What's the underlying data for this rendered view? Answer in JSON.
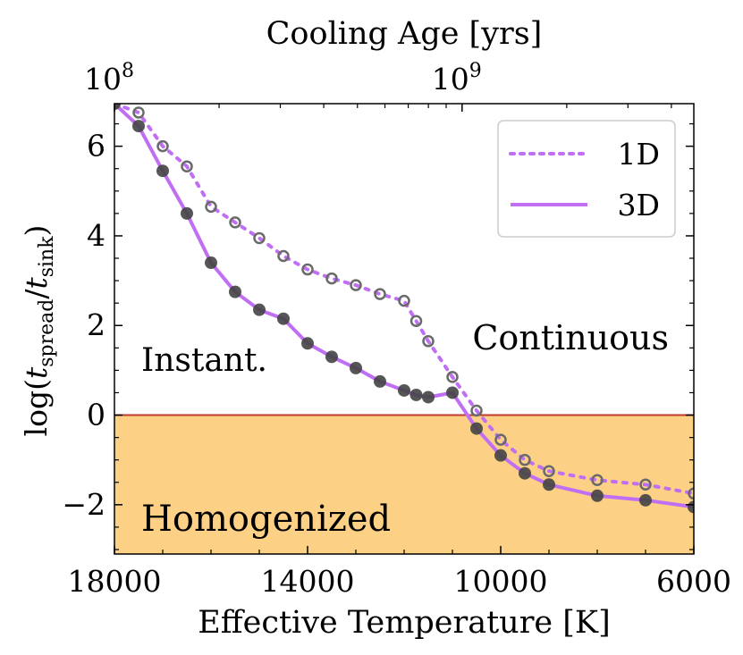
{
  "chart_data": {
    "type": "line",
    "title": "",
    "xlabel": "Effective Temperature [K]",
    "ylabel": "log(t_spread/t_sink)",
    "ylabel_parts": {
      "prefix": "log(",
      "t": "t",
      "sub1": "spread",
      "slash": "/",
      "sub2": "sink",
      "suffix": ")"
    },
    "top_axis_label": "Cooling Age [yrs]",
    "top_axis_ticks": [
      {
        "base": "10",
        "exp": "8",
        "teff": 18000
      },
      {
        "base": "10",
        "exp": "9",
        "teff": 10800
      }
    ],
    "xlim": [
      18000,
      6000
    ],
    "ylim": [
      -3.1,
      6.95
    ],
    "x_ticks": [
      18000,
      14000,
      10000,
      6000
    ],
    "x_tick_labels": [
      "18000",
      "14000",
      "10000",
      "6000"
    ],
    "y_ticks": [
      -2,
      0,
      2,
      4,
      6
    ],
    "y_tick_labels": [
      "−2",
      "0",
      "2",
      "4",
      "6"
    ],
    "legend": {
      "position": "upper-right",
      "entries": [
        {
          "label": "1D",
          "style": "dotted"
        },
        {
          "label": "3D",
          "style": "solid"
        }
      ]
    },
    "zero_line_color": "#c0392b",
    "region_fill_color": "#fdd185",
    "series_color": "#c06ff5",
    "marker_color": "#444444",
    "annotations": [
      {
        "text": "Instant.",
        "color": "#c06ff5"
      },
      {
        "text": "Continuous",
        "color": "#3a3a3a"
      },
      {
        "text": "Homogenized",
        "color": "#111111"
      }
    ],
    "series": [
      {
        "name": "1D",
        "style": "dotted",
        "marker": "open-circle",
        "x": [
          18000,
          17500,
          17000,
          16500,
          16000,
          15500,
          15000,
          14500,
          14000,
          13500,
          13000,
          12500,
          12000,
          11750,
          11500,
          11000,
          10500,
          10000,
          9500,
          9000,
          8000,
          7000,
          6000
        ],
        "y": [
          6.95,
          6.75,
          6.0,
          5.55,
          4.65,
          4.3,
          3.95,
          3.55,
          3.25,
          3.05,
          2.9,
          2.7,
          2.55,
          2.1,
          1.65,
          0.85,
          0.1,
          -0.55,
          -1.0,
          -1.25,
          -1.45,
          -1.55,
          -1.75
        ]
      },
      {
        "name": "3D",
        "style": "solid",
        "marker": "filled-circle",
        "x": [
          18000,
          17500,
          17000,
          16500,
          16000,
          15500,
          15000,
          14500,
          14000,
          13500,
          13000,
          12500,
          12000,
          11750,
          11500,
          11000,
          10500,
          10000,
          9500,
          9000,
          8000,
          7000,
          6000
        ],
        "y": [
          6.95,
          6.45,
          5.45,
          4.5,
          3.4,
          2.75,
          2.35,
          2.15,
          1.6,
          1.3,
          1.05,
          0.75,
          0.55,
          0.45,
          0.4,
          0.5,
          -0.3,
          -0.9,
          -1.3,
          -1.55,
          -1.8,
          -1.9,
          -2.05
        ]
      }
    ]
  }
}
